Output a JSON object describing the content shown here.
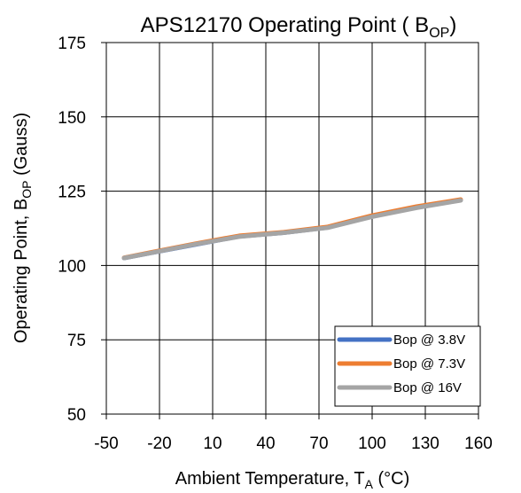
{
  "chart_data": {
    "type": "line",
    "title_main": "APS12170 Operating Point ( B",
    "title_sub": "OP",
    "title_end": ")",
    "xlabel_main": "Ambient Temperature, T",
    "xlabel_sub": "A",
    "xlabel_end": " (°C)",
    "ylabel_main": "Operating Point, B",
    "ylabel_sub": "OP",
    "ylabel_end": " (Gauss)",
    "xlim": [
      -50,
      160
    ],
    "ylim": [
      50,
      175
    ],
    "xticks": [
      -50,
      -20,
      10,
      40,
      70,
      100,
      130,
      160
    ],
    "yticks": [
      50,
      75,
      100,
      125,
      150,
      175
    ],
    "grid": true,
    "legend_position": "bottom-right",
    "series": [
      {
        "name": "Bop @ 3.8V",
        "color": "#4472C4",
        "x": [
          -40,
          -25,
          0,
          25,
          50,
          75,
          100,
          125,
          150
        ],
        "y": [
          102.5,
          104.2,
          107,
          109.8,
          111,
          112.8,
          116.5,
          119.5,
          122
        ]
      },
      {
        "name": "Bop @ 7.3V",
        "color": "#ED7D31",
        "x": [
          -40,
          -25,
          0,
          25,
          50,
          75,
          100,
          125,
          150
        ],
        "y": [
          102.6,
          104.4,
          107.3,
          110,
          111.2,
          113,
          116.8,
          119.8,
          122.2
        ]
      },
      {
        "name": "Bop @ 16V",
        "color": "#A5A5A5",
        "x": [
          -40,
          -25,
          0,
          25,
          50,
          75,
          100,
          125,
          150
        ],
        "y": [
          102.5,
          104.2,
          107.1,
          109.7,
          111,
          112.7,
          116.4,
          119.4,
          121.9
        ]
      }
    ]
  }
}
